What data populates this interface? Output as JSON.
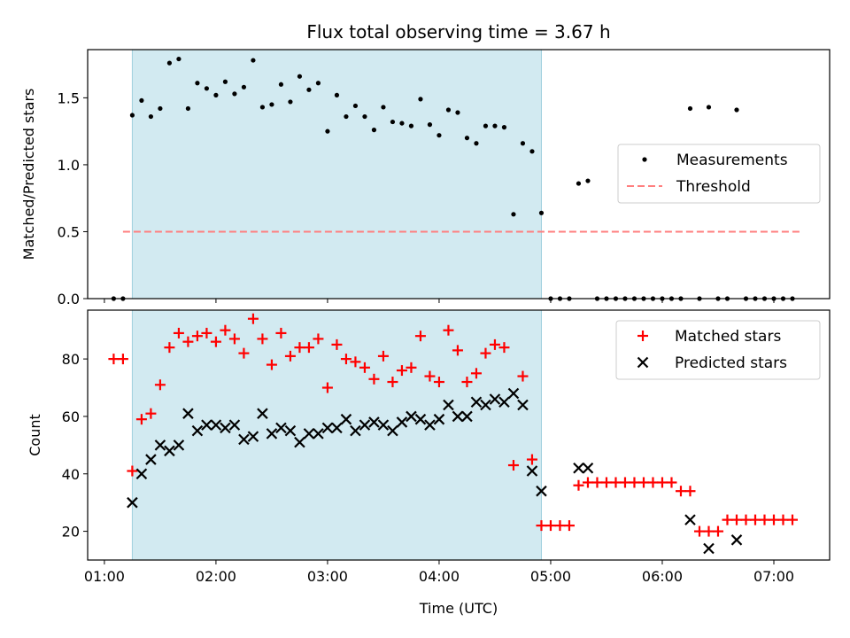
{
  "chart_data": [
    {
      "type": "scatter",
      "title": "Flux total observing time = 3.67 h",
      "xlabel": "",
      "ylabel": "Matched/Predicted stars",
      "xlim": [
        "00:51",
        "07:30"
      ],
      "ylim": [
        0,
        1.86
      ],
      "xticks": [
        "01:00",
        "02:00",
        "03:00",
        "04:00",
        "05:00",
        "06:00",
        "07:00"
      ],
      "yticks": [
        0.0,
        0.5,
        1.0,
        1.5
      ],
      "ytick_labels": [
        "0.0",
        "0.5",
        "1.0",
        "1.5"
      ],
      "shaded_span": {
        "x": [
          "01:15",
          "04:55"
        ],
        "color": "#add8e6"
      },
      "legend": {
        "position": "center-right",
        "entries": [
          "Measurements",
          "Threshold"
        ]
      },
      "series": [
        {
          "name": "Measurements",
          "kind": "scatter",
          "color": "#000000",
          "points": [
            [
              "01:05",
              0.0
            ],
            [
              "01:10",
              0.0
            ],
            [
              "01:15",
              1.37
            ],
            [
              "01:20",
              1.48
            ],
            [
              "01:25",
              1.36
            ],
            [
              "01:30",
              1.42
            ],
            [
              "01:35",
              1.76
            ],
            [
              "01:40",
              1.79
            ],
            [
              "01:45",
              1.42
            ],
            [
              "01:50",
              1.61
            ],
            [
              "01:55",
              1.57
            ],
            [
              "02:00",
              1.52
            ],
            [
              "02:05",
              1.62
            ],
            [
              "02:10",
              1.53
            ],
            [
              "02:15",
              1.58
            ],
            [
              "02:20",
              1.78
            ],
            [
              "02:25",
              1.43
            ],
            [
              "02:30",
              1.45
            ],
            [
              "02:35",
              1.6
            ],
            [
              "02:40",
              1.47
            ],
            [
              "02:45",
              1.66
            ],
            [
              "02:50",
              1.56
            ],
            [
              "02:55",
              1.61
            ],
            [
              "03:00",
              1.25
            ],
            [
              "03:05",
              1.52
            ],
            [
              "03:10",
              1.36
            ],
            [
              "03:15",
              1.44
            ],
            [
              "03:20",
              1.36
            ],
            [
              "03:25",
              1.26
            ],
            [
              "03:30",
              1.43
            ],
            [
              "03:35",
              1.32
            ],
            [
              "03:40",
              1.31
            ],
            [
              "03:45",
              1.29
            ],
            [
              "03:50",
              1.49
            ],
            [
              "03:55",
              1.3
            ],
            [
              "04:00",
              1.22
            ],
            [
              "04:05",
              1.41
            ],
            [
              "04:10",
              1.39
            ],
            [
              "04:15",
              1.2
            ],
            [
              "04:20",
              1.16
            ],
            [
              "04:25",
              1.29
            ],
            [
              "04:30",
              1.29
            ],
            [
              "04:35",
              1.28
            ],
            [
              "04:40",
              0.63
            ],
            [
              "04:45",
              1.16
            ],
            [
              "04:50",
              1.1
            ],
            [
              "04:55",
              0.64
            ],
            [
              "05:00",
              0.0
            ],
            [
              "05:05",
              0.0
            ],
            [
              "05:10",
              0.0
            ],
            [
              "05:15",
              0.86
            ],
            [
              "05:20",
              0.88
            ],
            [
              "05:25",
              0.0
            ],
            [
              "05:30",
              0.0
            ],
            [
              "05:35",
              0.0
            ],
            [
              "05:40",
              0.0
            ],
            [
              "05:45",
              0.0
            ],
            [
              "05:50",
              0.0
            ],
            [
              "05:55",
              0.0
            ],
            [
              "06:00",
              0.0
            ],
            [
              "06:05",
              0.0
            ],
            [
              "06:10",
              0.0
            ],
            [
              "06:15",
              1.42
            ],
            [
              "06:20",
              0.0
            ],
            [
              "06:25",
              1.43
            ],
            [
              "06:30",
              0.0
            ],
            [
              "06:35",
              0.0
            ],
            [
              "06:40",
              1.41
            ],
            [
              "06:45",
              0.0
            ],
            [
              "06:50",
              0.0
            ],
            [
              "06:55",
              0.0
            ],
            [
              "07:00",
              0.0
            ],
            [
              "07:05",
              0.0
            ],
            [
              "07:10",
              0.0
            ]
          ]
        },
        {
          "name": "Threshold",
          "kind": "line",
          "dashed": true,
          "color": "#ff7f7f",
          "points": [
            [
              "01:10",
              0.5
            ],
            [
              "07:15",
              0.5
            ]
          ]
        }
      ]
    },
    {
      "type": "scatter",
      "title": "",
      "xlabel": "Time (UTC)",
      "ylabel": "Count",
      "xlim": [
        "00:51",
        "07:30"
      ],
      "ylim": [
        10,
        97
      ],
      "xticks": [
        "01:00",
        "02:00",
        "03:00",
        "04:00",
        "05:00",
        "06:00",
        "07:00"
      ],
      "yticks": [
        20,
        40,
        60,
        80
      ],
      "ytick_labels": [
        "20",
        "40",
        "60",
        "80"
      ],
      "shaded_span": {
        "x": [
          "01:15",
          "04:55"
        ],
        "color": "#add8e6"
      },
      "legend": {
        "position": "top-right",
        "entries": [
          "Matched stars",
          "Predicted stars"
        ]
      },
      "series": [
        {
          "name": "Matched stars",
          "kind": "scatter",
          "marker": "plus",
          "color": "#ff0000",
          "points": [
            [
              "01:05",
              80
            ],
            [
              "01:10",
              80
            ],
            [
              "01:15",
              41
            ],
            [
              "01:20",
              59
            ],
            [
              "01:25",
              61
            ],
            [
              "01:30",
              71
            ],
            [
              "01:35",
              84
            ],
            [
              "01:40",
              89
            ],
            [
              "01:45",
              86
            ],
            [
              "01:50",
              88
            ],
            [
              "01:55",
              89
            ],
            [
              "02:00",
              86
            ],
            [
              "02:05",
              90
            ],
            [
              "02:10",
              87
            ],
            [
              "02:15",
              82
            ],
            [
              "02:20",
              94
            ],
            [
              "02:25",
              87
            ],
            [
              "02:30",
              78
            ],
            [
              "02:35",
              89
            ],
            [
              "02:40",
              81
            ],
            [
              "02:45",
              84
            ],
            [
              "02:50",
              84
            ],
            [
              "02:55",
              87
            ],
            [
              "03:00",
              70
            ],
            [
              "03:05",
              85
            ],
            [
              "03:10",
              80
            ],
            [
              "03:15",
              79
            ],
            [
              "03:20",
              77
            ],
            [
              "03:25",
              73
            ],
            [
              "03:30",
              81
            ],
            [
              "03:35",
              72
            ],
            [
              "03:40",
              76
            ],
            [
              "03:45",
              77
            ],
            [
              "03:50",
              88
            ],
            [
              "03:55",
              74
            ],
            [
              "04:00",
              72
            ],
            [
              "04:05",
              90
            ],
            [
              "04:10",
              83
            ],
            [
              "04:15",
              72
            ],
            [
              "04:20",
              75
            ],
            [
              "04:25",
              82
            ],
            [
              "04:30",
              85
            ],
            [
              "04:35",
              84
            ],
            [
              "04:40",
              43
            ],
            [
              "04:45",
              74
            ],
            [
              "04:50",
              45
            ],
            [
              "04:55",
              22
            ],
            [
              "05:00",
              22
            ],
            [
              "05:05",
              22
            ],
            [
              "05:10",
              22
            ],
            [
              "05:15",
              36
            ],
            [
              "05:20",
              37
            ],
            [
              "05:25",
              37
            ],
            [
              "05:30",
              37
            ],
            [
              "05:35",
              37
            ],
            [
              "05:40",
              37
            ],
            [
              "05:45",
              37
            ],
            [
              "05:50",
              37
            ],
            [
              "05:55",
              37
            ],
            [
              "06:00",
              37
            ],
            [
              "06:05",
              37
            ],
            [
              "06:10",
              34
            ],
            [
              "06:15",
              34
            ],
            [
              "06:20",
              20
            ],
            [
              "06:25",
              20
            ],
            [
              "06:30",
              20
            ],
            [
              "06:35",
              24
            ],
            [
              "06:40",
              24
            ],
            [
              "06:45",
              24
            ],
            [
              "06:50",
              24
            ],
            [
              "06:55",
              24
            ],
            [
              "07:00",
              24
            ],
            [
              "07:05",
              24
            ],
            [
              "07:10",
              24
            ]
          ]
        },
        {
          "name": "Predicted stars",
          "kind": "scatter",
          "marker": "x",
          "color": "#000000",
          "points": [
            [
              "01:15",
              30
            ],
            [
              "01:20",
              40
            ],
            [
              "01:25",
              45
            ],
            [
              "01:30",
              50
            ],
            [
              "01:35",
              48
            ],
            [
              "01:40",
              50
            ],
            [
              "01:45",
              61
            ],
            [
              "01:50",
              55
            ],
            [
              "01:55",
              57
            ],
            [
              "02:00",
              57
            ],
            [
              "02:05",
              56
            ],
            [
              "02:10",
              57
            ],
            [
              "02:15",
              52
            ],
            [
              "02:20",
              53
            ],
            [
              "02:25",
              61
            ],
            [
              "02:30",
              54
            ],
            [
              "02:35",
              56
            ],
            [
              "02:40",
              55
            ],
            [
              "02:45",
              51
            ],
            [
              "02:50",
              54
            ],
            [
              "02:55",
              54
            ],
            [
              "03:00",
              56
            ],
            [
              "03:05",
              56
            ],
            [
              "03:10",
              59
            ],
            [
              "03:15",
              55
            ],
            [
              "03:20",
              57
            ],
            [
              "03:25",
              58
            ],
            [
              "03:30",
              57
            ],
            [
              "03:35",
              55
            ],
            [
              "03:40",
              58
            ],
            [
              "03:45",
              60
            ],
            [
              "03:50",
              59
            ],
            [
              "03:55",
              57
            ],
            [
              "04:00",
              59
            ],
            [
              "04:05",
              64
            ],
            [
              "04:10",
              60
            ],
            [
              "04:15",
              60
            ],
            [
              "04:20",
              65
            ],
            [
              "04:25",
              64
            ],
            [
              "04:30",
              66
            ],
            [
              "04:35",
              65
            ],
            [
              "04:40",
              68
            ],
            [
              "04:45",
              64
            ],
            [
              "04:50",
              41
            ],
            [
              "04:55",
              34
            ],
            [
              "05:15",
              42
            ],
            [
              "05:20",
              42
            ],
            [
              "06:15",
              24
            ],
            [
              "06:25",
              14
            ],
            [
              "06:40",
              17
            ]
          ]
        }
      ]
    }
  ]
}
